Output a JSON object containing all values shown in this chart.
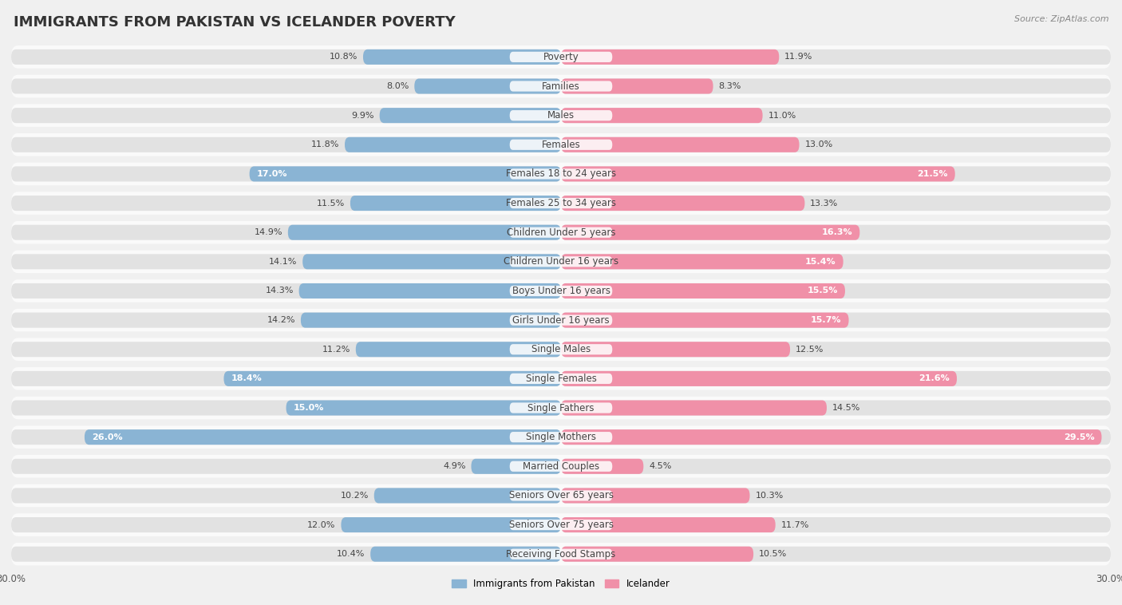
{
  "title": "IMMIGRANTS FROM PAKISTAN VS ICELANDER POVERTY",
  "source": "Source: ZipAtlas.com",
  "categories": [
    "Poverty",
    "Families",
    "Males",
    "Females",
    "Females 18 to 24 years",
    "Females 25 to 34 years",
    "Children Under 5 years",
    "Children Under 16 years",
    "Boys Under 16 years",
    "Girls Under 16 years",
    "Single Males",
    "Single Females",
    "Single Fathers",
    "Single Mothers",
    "Married Couples",
    "Seniors Over 65 years",
    "Seniors Over 75 years",
    "Receiving Food Stamps"
  ],
  "pakistan_values": [
    10.8,
    8.0,
    9.9,
    11.8,
    17.0,
    11.5,
    14.9,
    14.1,
    14.3,
    14.2,
    11.2,
    18.4,
    15.0,
    26.0,
    4.9,
    10.2,
    12.0,
    10.4
  ],
  "icelander_values": [
    11.9,
    8.3,
    11.0,
    13.0,
    21.5,
    13.3,
    16.3,
    15.4,
    15.5,
    15.7,
    12.5,
    21.6,
    14.5,
    29.5,
    4.5,
    10.3,
    11.7,
    10.5
  ],
  "pakistan_color": "#8ab4d4",
  "icelander_color": "#f090a8",
  "background_color": "#f0f0f0",
  "row_bg_color": "#e2e2e2",
  "row_white_color": "#fafafa",
  "xlim": 30.0,
  "legend_pakistan": "Immigrants from Pakistan",
  "legend_icelander": "Icelander",
  "title_fontsize": 13,
  "label_fontsize": 8.5,
  "value_fontsize": 8.0,
  "value_white_threshold": 15.0
}
